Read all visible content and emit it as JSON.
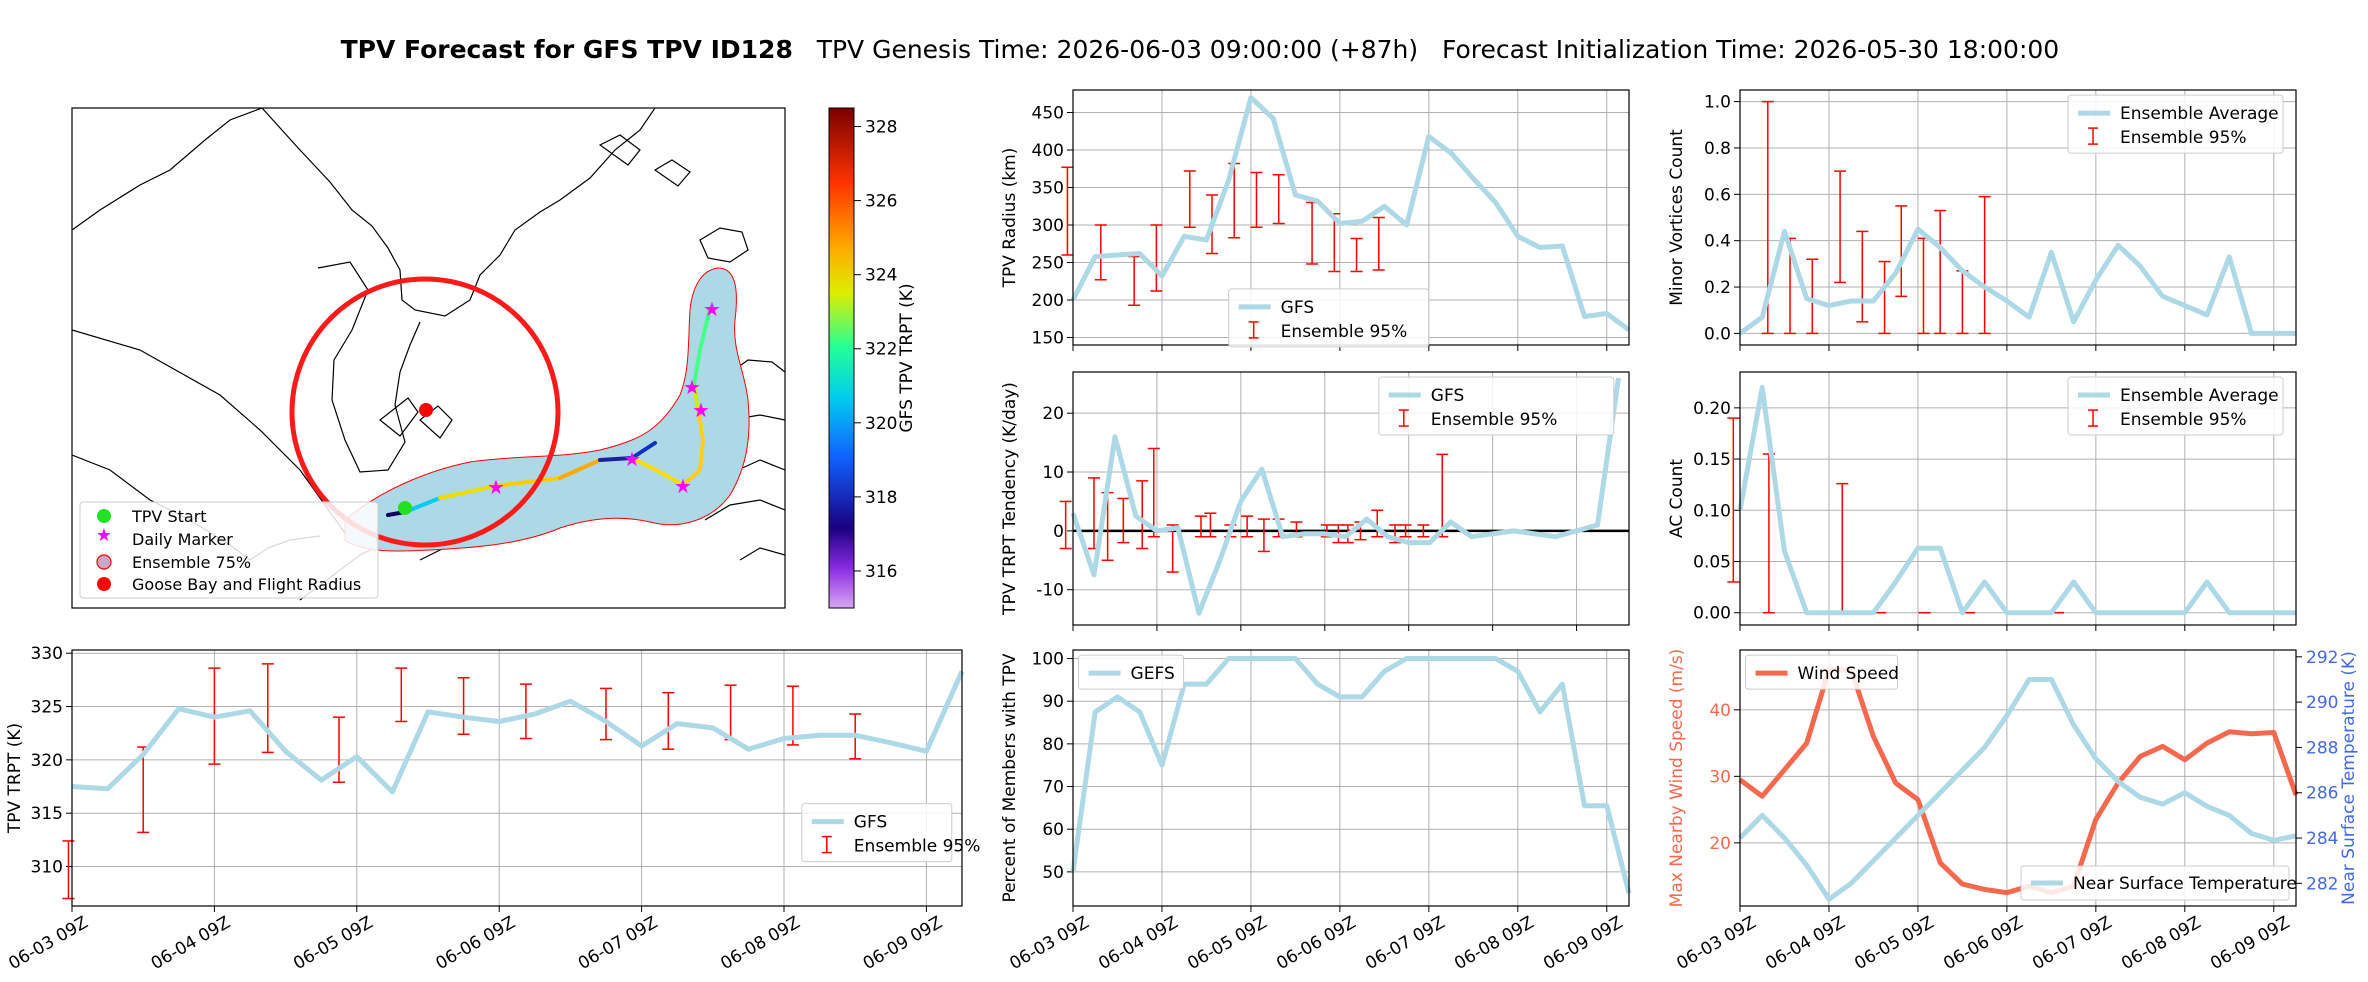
{
  "title": {
    "main": "TPV Forecast for GFS TPV ID128",
    "genesis": "TPV Genesis Time: 2026-06-03 09:00:00 (+87h)",
    "init": "Forecast Initialization Time: 2026-05-30 18:00:00"
  },
  "time_ticks": [
    "06-03 09Z",
    "06-04 09Z",
    "06-05 09Z",
    "06-06 09Z",
    "06-07 09Z",
    "06-08 09Z",
    "06-09 09Z"
  ],
  "colors": {
    "line": "#add8e6",
    "err": "#ff0000",
    "wind": "#f4694d",
    "temp_axis": "#4169e1",
    "grid": "#b0b0b0",
    "circle": "#ff1a1a"
  },
  "map": {
    "colorbar": {
      "label": "GFS TPV TRPT (K)",
      "ticks": [
        "316",
        "318",
        "320",
        "322",
        "324",
        "326",
        "328"
      ],
      "min": 315,
      "max": 328.5
    },
    "legend": [
      "TPV Start",
      "Daily Marker",
      "Ensemble 75%",
      "Goose Bay and Flight Radius"
    ]
  },
  "chart_data": [
    {
      "id": "radius",
      "type": "line",
      "ylabel": "TPV Radius (km)",
      "ylim": [
        140,
        480
      ],
      "yticks": [
        150,
        200,
        250,
        300,
        350,
        400,
        450
      ],
      "series": [
        {
          "name": "GFS",
          "values": [
            200,
            258,
            260,
            262,
            232,
            285,
            280,
            360,
            470,
            442,
            340,
            332,
            302,
            305,
            325,
            300,
            418,
            396,
            362,
            330,
            285,
            270,
            272,
            178,
            182,
            160
          ]
        }
      ],
      "errorbars": [
        [
          -0.25,
          260,
          377
        ],
        [
          1.25,
          227,
          300
        ],
        [
          2.75,
          193,
          258
        ],
        [
          3.75,
          212,
          300
        ],
        [
          5.25,
          297,
          372
        ],
        [
          6.25,
          262,
          340
        ],
        [
          7.25,
          283,
          382
        ],
        [
          8.25,
          297,
          370
        ],
        [
          9.25,
          302,
          367
        ],
        [
          10.75,
          248,
          330
        ],
        [
          11.75,
          238,
          315
        ],
        [
          12.75,
          238,
          282
        ],
        [
          13.75,
          240,
          310
        ]
      ],
      "legend": [
        "GFS",
        "Ensemble 95%"
      ]
    },
    {
      "id": "minor",
      "type": "line",
      "ylabel": "Minor Vortices Count",
      "ylim": [
        -0.05,
        1.05
      ],
      "yticks": [
        "0.0",
        "0.2",
        "0.4",
        "0.6",
        "0.8",
        "1.0"
      ],
      "series": [
        {
          "name": "Ensemble Average",
          "values": [
            0,
            0.07,
            0.44,
            0.15,
            0.12,
            0.14,
            0.14,
            0.26,
            0.45,
            0.37,
            0.27,
            0.2,
            0.14,
            0.07,
            0.35,
            0.05,
            0.23,
            0.38,
            0.29,
            0.16,
            0.12,
            0.08,
            0.33,
            0,
            0,
            0
          ]
        }
      ],
      "errorbars": [
        [
          1.25,
          0,
          1
        ],
        [
          2.25,
          0,
          0.41
        ],
        [
          3.25,
          0,
          0.32
        ],
        [
          4.5,
          0.22,
          0.7
        ],
        [
          5.5,
          0.05,
          0.44
        ],
        [
          6.5,
          0,
          0.31
        ],
        [
          7.25,
          0.16,
          0.55
        ],
        [
          8.25,
          0,
          0.41
        ],
        [
          9.0,
          0,
          0.53
        ],
        [
          10.0,
          0,
          0.27
        ],
        [
          11.0,
          0,
          0.59
        ]
      ],
      "legend": [
        "Ensemble Average",
        "Ensemble 95%"
      ]
    },
    {
      "id": "tend",
      "type": "line",
      "ylabel": "TPV TRPT Tendency (K/day)",
      "ylim": [
        -16,
        27
      ],
      "yticks": [
        -10,
        0,
        10,
        20
      ],
      "series": [
        {
          "name": "GFS",
          "values": [
            3,
            -7.5,
            16,
            2.5,
            0,
            0.5,
            -14,
            -5,
            5,
            10.5,
            -1,
            -0.5,
            -0.5,
            -1,
            2,
            -1,
            -2,
            -2,
            1.5,
            -1,
            -0.5,
            0,
            -0.5,
            -1,
            0,
            1,
            26
          ]
        }
      ],
      "errorbars": [
        [
          -0.35,
          -3,
          5
        ],
        [
          1.0,
          -3,
          9
        ],
        [
          1.65,
          -5,
          6.5
        ],
        [
          2.4,
          -2,
          5.5
        ],
        [
          3.3,
          -3,
          8.5
        ],
        [
          3.85,
          -1,
          14
        ],
        [
          4.75,
          -7,
          1
        ],
        [
          6.1,
          -1,
          2.5
        ],
        [
          6.55,
          -1,
          3
        ],
        [
          7.5,
          -1,
          1
        ],
        [
          8.3,
          -1,
          2.5
        ],
        [
          9.1,
          -3.5,
          2
        ],
        [
          9.8,
          -1,
          2
        ],
        [
          10.65,
          -1,
          1.5
        ],
        [
          12.1,
          -1,
          1
        ],
        [
          12.65,
          -2,
          1
        ],
        [
          13.1,
          -2,
          1
        ],
        [
          13.7,
          -1.5,
          1.5
        ],
        [
          14.5,
          -1,
          3.5
        ],
        [
          15.35,
          -2,
          1
        ],
        [
          15.85,
          -1,
          1
        ],
        [
          16.7,
          -1,
          1
        ],
        [
          17.6,
          -1,
          13
        ]
      ],
      "legend": [
        "GFS",
        "Ensemble 95%"
      ]
    },
    {
      "id": "ac",
      "type": "line",
      "ylabel": "AC Count",
      "ylim": [
        -0.012,
        0.235
      ],
      "yticks": [
        "0.00",
        "0.05",
        "0.10",
        "0.15",
        "0.20"
      ],
      "series": [
        {
          "name": "Ensemble Average",
          "values": [
            0.1,
            0.22,
            0.06,
            0,
            0,
            0,
            0,
            0.03,
            0.063,
            0.063,
            0,
            0.03,
            0,
            0,
            0,
            0.03,
            0,
            0,
            0,
            0,
            0,
            0.03,
            0,
            0,
            0,
            0
          ]
        }
      ],
      "errorbars": [
        [
          -0.3,
          0.03,
          0.19
        ],
        [
          1.3,
          0,
          0.155
        ],
        [
          3.3,
          0,
          0
        ],
        [
          4.6,
          0,
          0.126
        ],
        [
          6.3,
          0,
          0
        ],
        [
          8.3,
          0,
          0
        ],
        [
          10.3,
          0,
          0
        ],
        [
          12.3,
          0,
          0
        ],
        [
          14.3,
          0,
          0
        ]
      ],
      "legend": [
        "Ensemble Average",
        "Ensemble 95%"
      ]
    },
    {
      "id": "trpt",
      "type": "line",
      "ylabel": "TPV TRPT (K)",
      "ylim": [
        306.3,
        330.3
      ],
      "yticks": [
        310,
        315,
        320,
        325,
        330
      ],
      "series": [
        {
          "name": "GFS",
          "values": [
            317.5,
            317.3,
            320.5,
            324.8,
            324.0,
            324.6,
            320.8,
            318.1,
            320.3,
            317.0,
            324.5,
            324.0,
            323.6,
            324.3,
            325.5,
            323.6,
            321.3,
            323.4,
            323.0,
            321.0,
            322.0,
            322.3,
            322.3,
            321.6,
            320.8,
            328.3
          ]
        }
      ],
      "errorbars": [
        [
          -0.1,
          307,
          312.4
        ],
        [
          2.0,
          313.2,
          321.2
        ],
        [
          4.0,
          319.6,
          328.6
        ],
        [
          5.5,
          320.7,
          329.0
        ],
        [
          7.5,
          317.9,
          324.0
        ],
        [
          9.25,
          323.6,
          328.6
        ],
        [
          11.0,
          322.4,
          327.7
        ],
        [
          12.75,
          322.0,
          327.1
        ],
        [
          15.0,
          321.9,
          326.7
        ],
        [
          16.75,
          321.0,
          326.3
        ],
        [
          18.5,
          321.9,
          327.0
        ],
        [
          20.25,
          321.4,
          326.9
        ],
        [
          22.0,
          320.1,
          324.3
        ]
      ],
      "legend": [
        "GFS",
        "Ensemble 95%"
      ]
    },
    {
      "id": "pct",
      "type": "line",
      "ylabel": "Percent of Members with TPV",
      "ylim": [
        42,
        102
      ],
      "yticks": [
        50,
        60,
        70,
        80,
        90,
        100
      ],
      "series": [
        {
          "name": "GEFS",
          "values": [
            50,
            87.5,
            91,
            87.5,
            75,
            94,
            94,
            100,
            100,
            100,
            100,
            94,
            91,
            91,
            97,
            100,
            100,
            100,
            100,
            100,
            97,
            87.5,
            94,
            65.5,
            65.5,
            45
          ]
        }
      ],
      "legend": [
        "GEFS"
      ]
    },
    {
      "id": "wind",
      "type": "line",
      "ylabel": "Max Nearby Wind Speed (m/s)",
      "ylabel2": "Near Surface Temperature (K)",
      "ylim": [
        10.5,
        49
      ],
      "yticks": [
        20,
        30,
        40
      ],
      "ylim2": [
        281,
        292.3
      ],
      "yticks2": [
        282,
        284,
        286,
        288,
        290,
        292
      ],
      "series": [
        {
          "name": "Wind Speed",
          "values": [
            29.5,
            27,
            31,
            35,
            46,
            46,
            36,
            29,
            26.5,
            17,
            13.8,
            13,
            12.5,
            13.5,
            12.5,
            13.5,
            23.5,
            29,
            33,
            34.5,
            32.5,
            35,
            36.7,
            36.4,
            36.6,
            27.2
          ]
        },
        {
          "name": "Near Surface Temperature",
          "axis": "right",
          "values": [
            284,
            285,
            284,
            282.8,
            281.3,
            282,
            283,
            284,
            285,
            286,
            287,
            288,
            289.4,
            291,
            291,
            289,
            287.5,
            286.5,
            285.8,
            285.5,
            286,
            285.4,
            285,
            284.2,
            283.9,
            284.1
          ]
        }
      ],
      "legend": [
        "Wind Speed",
        "Near Surface Temperature"
      ]
    }
  ]
}
